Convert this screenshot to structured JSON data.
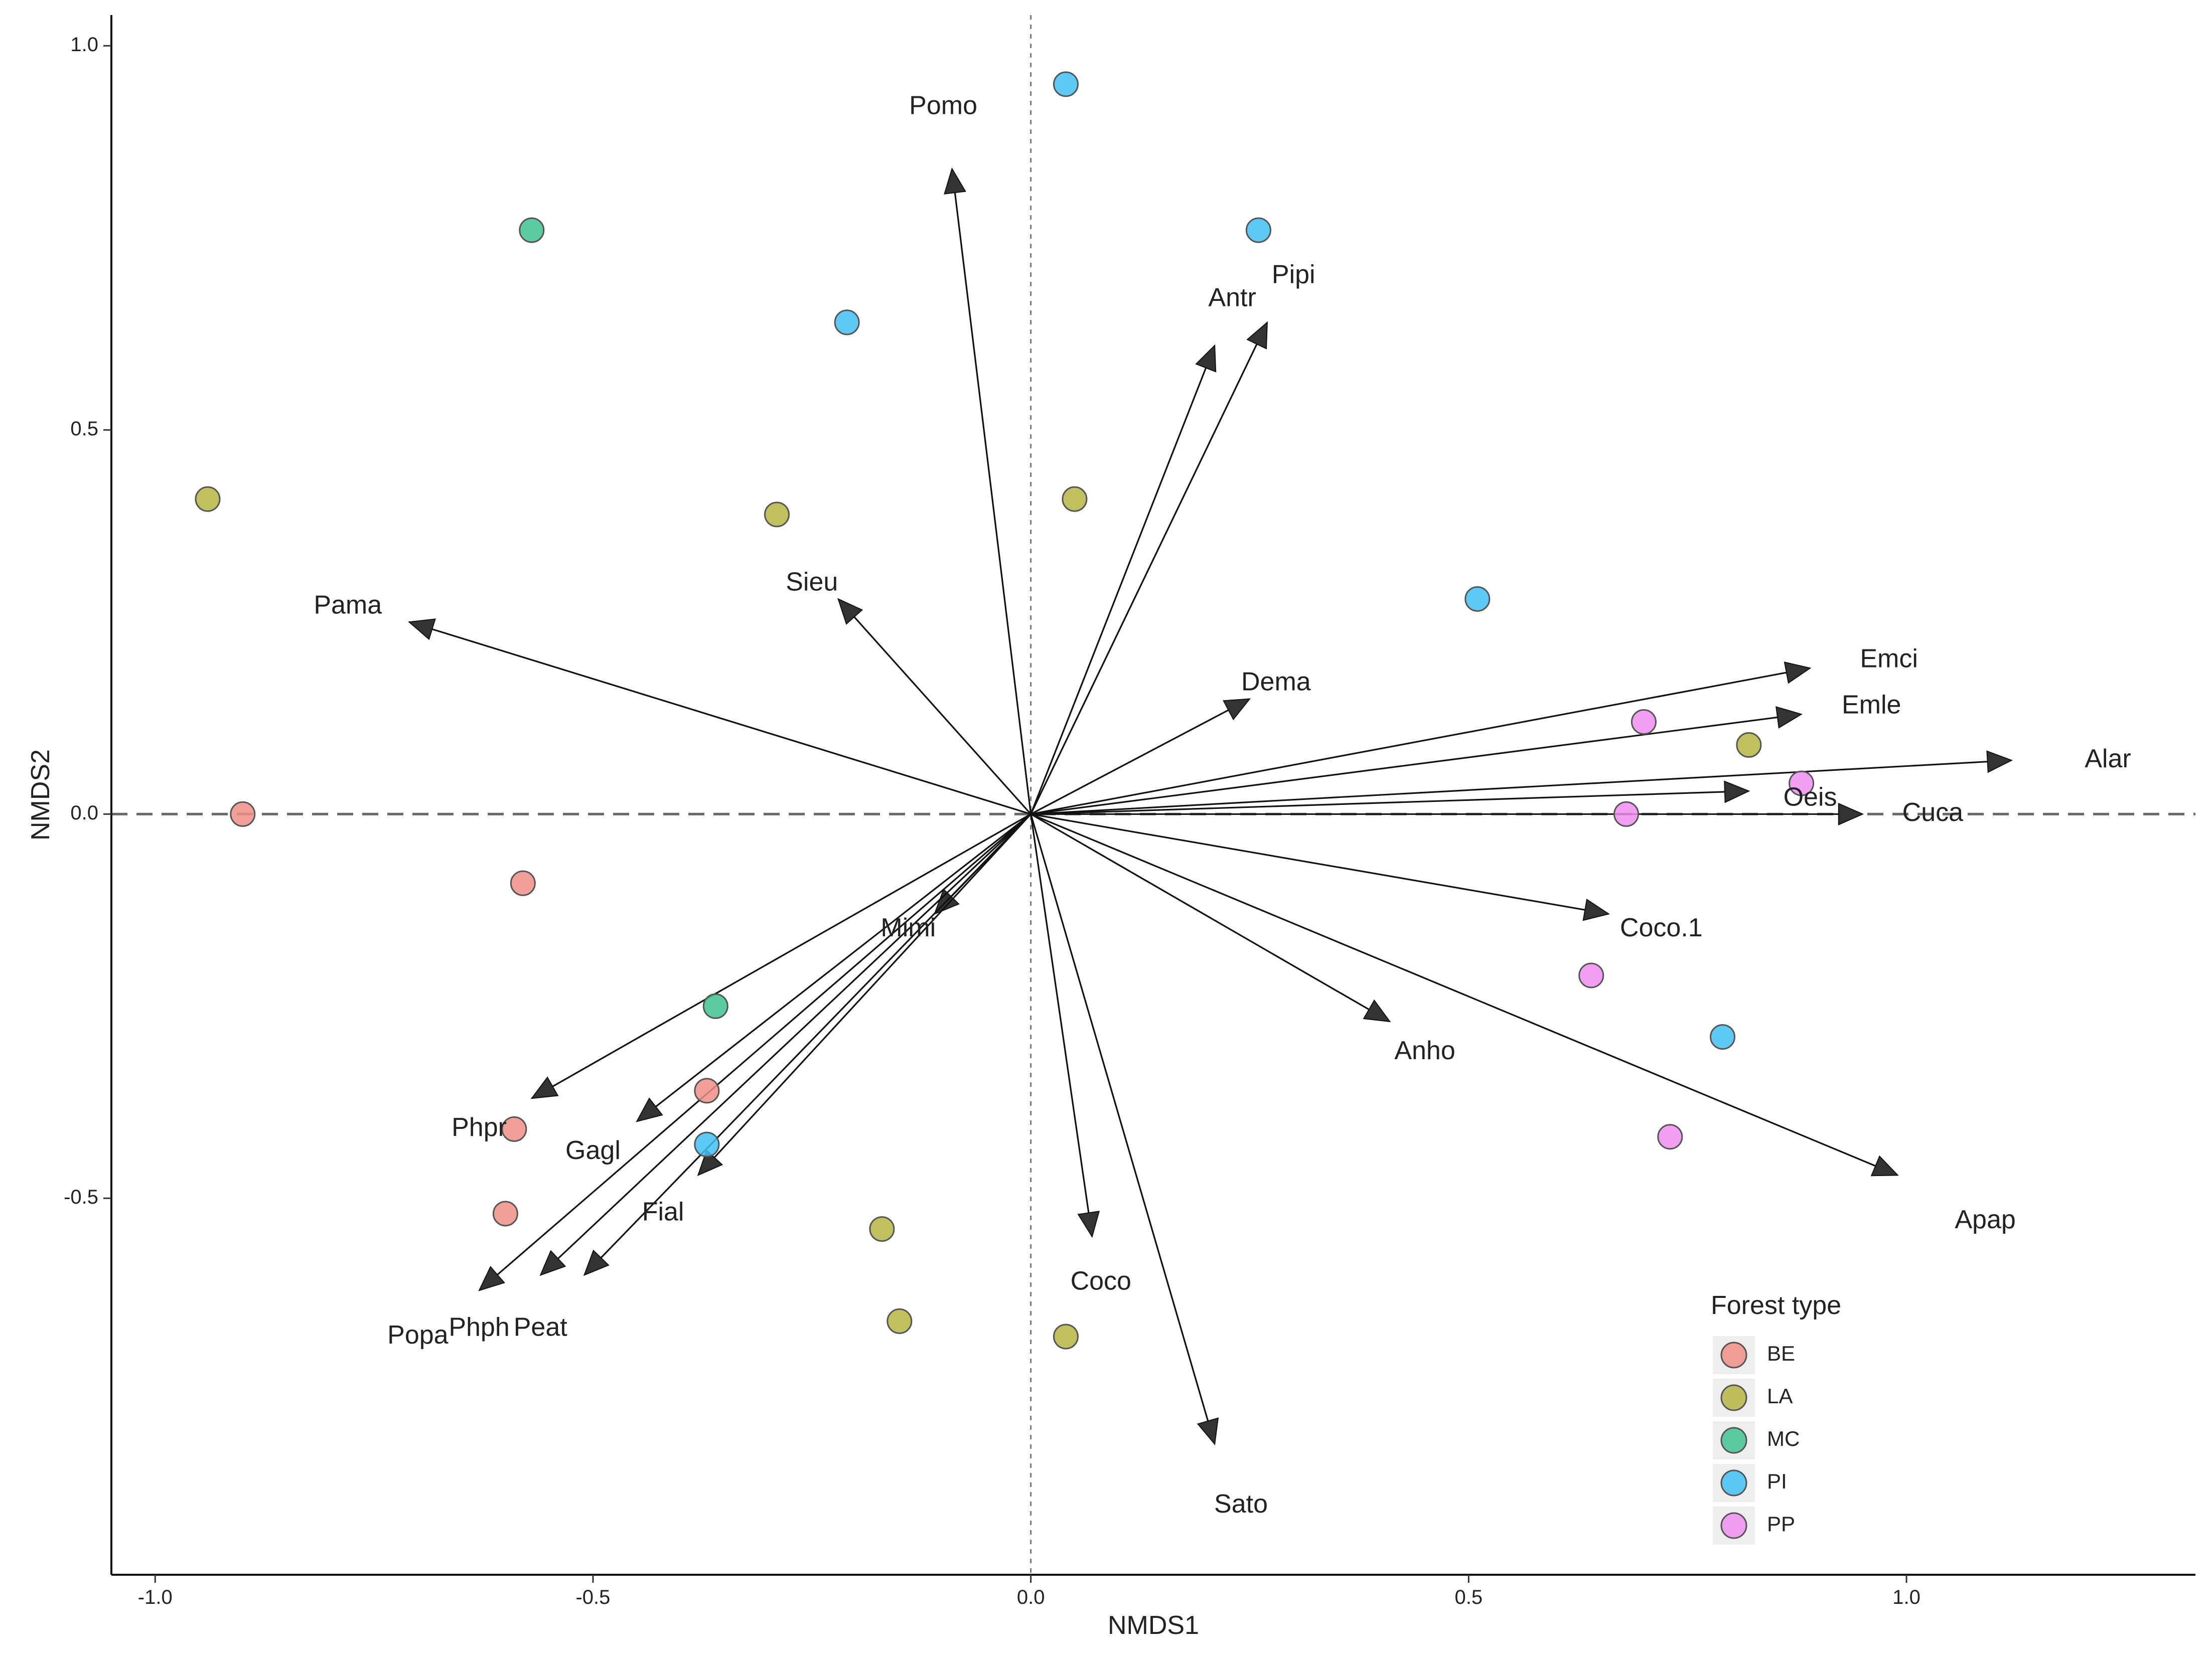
{
  "chart_data": {
    "type": "scatter",
    "subtype": "NMDS biplot with species vectors",
    "xlabel": "NMDS1",
    "ylabel": "NMDS2",
    "xlim": [
      -1.05,
      1.33
    ],
    "ylim": [
      -0.99,
      1.04
    ],
    "xticks": [
      -1.0,
      -0.5,
      0.0,
      0.5,
      1.0
    ],
    "xtick_labels": [
      "-1.0",
      "-0.5",
      "0.0",
      "0.5",
      "1.0"
    ],
    "yticks": [
      -0.5,
      0.0,
      0.5,
      1.0
    ],
    "ytick_labels": [
      "-0.5",
      "0.0",
      "0.5",
      "1.0"
    ],
    "reference_lines": {
      "x0": "dotted",
      "y0": "dashed"
    },
    "legend": {
      "title": "Forest type",
      "position": "bottom-right",
      "entries": [
        {
          "label": "BE",
          "color": "#F08E86"
        },
        {
          "label": "LA",
          "color": "#B5B543"
        },
        {
          "label": "MC",
          "color": "#3FC291"
        },
        {
          "label": "PI",
          "color": "#41BFF2"
        },
        {
          "label": "PP",
          "color": "#EE8DF1"
        }
      ]
    },
    "sites": [
      {
        "group": "PI",
        "x": 0.04,
        "y": 0.95
      },
      {
        "group": "PI",
        "x": 0.26,
        "y": 0.76
      },
      {
        "group": "MC",
        "x": -0.57,
        "y": 0.76
      },
      {
        "group": "PI",
        "x": -0.21,
        "y": 0.64
      },
      {
        "group": "LA",
        "x": -0.94,
        "y": 0.41
      },
      {
        "group": "LA",
        "x": -0.29,
        "y": 0.39
      },
      {
        "group": "LA",
        "x": 0.05,
        "y": 0.41
      },
      {
        "group": "PI",
        "x": 0.51,
        "y": 0.28
      },
      {
        "group": "PP",
        "x": 0.7,
        "y": 0.12
      },
      {
        "group": "LA",
        "x": 0.82,
        "y": 0.09
      },
      {
        "group": "PP",
        "x": 0.88,
        "y": 0.04
      },
      {
        "group": "PP",
        "x": 0.68,
        "y": 0.0
      },
      {
        "group": "BE",
        "x": -0.9,
        "y": 0.0
      },
      {
        "group": "BE",
        "x": -0.58,
        "y": -0.09
      },
      {
        "group": "PP",
        "x": 0.64,
        "y": -0.21
      },
      {
        "group": "PI",
        "x": 0.79,
        "y": -0.29
      },
      {
        "group": "MC",
        "x": -0.36,
        "y": -0.25
      },
      {
        "group": "BE",
        "x": -0.37,
        "y": -0.36
      },
      {
        "group": "BE",
        "x": -0.59,
        "y": -0.41
      },
      {
        "group": "PI",
        "x": -0.37,
        "y": -0.43
      },
      {
        "group": "PP",
        "x": 0.73,
        "y": -0.42
      },
      {
        "group": "BE",
        "x": -0.6,
        "y": -0.52
      },
      {
        "group": "LA",
        "x": -0.17,
        "y": -0.54
      },
      {
        "group": "LA",
        "x": -0.15,
        "y": -0.66
      },
      {
        "group": "LA",
        "x": 0.04,
        "y": -0.68
      }
    ],
    "vectors": [
      {
        "label": "Pomo",
        "x": -0.09,
        "y": 0.84,
        "lx": -0.1,
        "ly": 0.92
      },
      {
        "label": "Antr",
        "x": 0.21,
        "y": 0.61,
        "lx": 0.23,
        "ly": 0.67
      },
      {
        "label": "Pipi",
        "x": 0.27,
        "y": 0.64,
        "lx": 0.3,
        "ly": 0.7
      },
      {
        "label": "Sieu",
        "x": -0.22,
        "y": 0.28,
        "lx": -0.25,
        "ly": 0.3
      },
      {
        "label": "Pama",
        "x": -0.71,
        "y": 0.25,
        "lx": -0.78,
        "ly": 0.27
      },
      {
        "label": "Dema",
        "x": 0.25,
        "y": 0.15,
        "lx": 0.28,
        "ly": 0.17
      },
      {
        "label": "Emci",
        "x": 0.89,
        "y": 0.19,
        "lx": 0.98,
        "ly": 0.2
      },
      {
        "label": "Emle",
        "x": 0.88,
        "y": 0.13,
        "lx": 0.96,
        "ly": 0.14
      },
      {
        "label": "Alar",
        "x": 1.12,
        "y": 0.07,
        "lx": 1.23,
        "ly": 0.07
      },
      {
        "label": "Oeis",
        "x": 0.82,
        "y": 0.03,
        "lx": 0.89,
        "ly": 0.02
      },
      {
        "label": "Cuca",
        "x": 0.95,
        "y": 0.0,
        "lx": 1.03,
        "ly": 0.0
      },
      {
        "label": "Coco.1",
        "x": 0.66,
        "y": -0.13,
        "lx": 0.72,
        "ly": -0.15
      },
      {
        "label": "Anho",
        "x": 0.41,
        "y": -0.27,
        "lx": 0.45,
        "ly": -0.31
      },
      {
        "label": "Apap",
        "x": 0.99,
        "y": -0.47,
        "lx": 1.09,
        "ly": -0.53
      },
      {
        "label": "Mimi",
        "x": -0.11,
        "y": -0.13,
        "lx": -0.14,
        "ly": -0.15
      },
      {
        "label": "Phpr",
        "x": -0.57,
        "y": -0.37,
        "lx": -0.63,
        "ly": -0.41
      },
      {
        "label": "Gagl",
        "x": -0.45,
        "y": -0.4,
        "lx": -0.5,
        "ly": -0.44
      },
      {
        "label": "Fial",
        "x": -0.38,
        "y": -0.47,
        "lx": -0.42,
        "ly": -0.52
      },
      {
        "label": "Popa",
        "x": -0.63,
        "y": -0.62,
        "lx": -0.7,
        "ly": -0.68
      },
      {
        "label": "Phph",
        "x": -0.56,
        "y": -0.6,
        "lx": -0.63,
        "ly": -0.67
      },
      {
        "label": "Peat",
        "x": -0.51,
        "y": -0.6,
        "lx": -0.56,
        "ly": -0.67
      },
      {
        "label": "Coco",
        "x": 0.07,
        "y": -0.55,
        "lx": 0.08,
        "ly": -0.61
      },
      {
        "label": "Sato",
        "x": 0.21,
        "y": -0.82,
        "lx": 0.24,
        "ly": -0.9
      }
    ]
  }
}
